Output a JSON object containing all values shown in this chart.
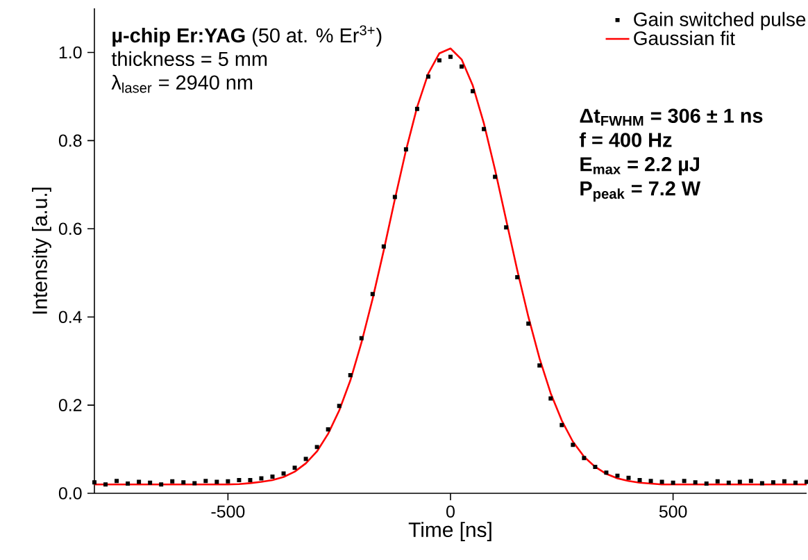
{
  "chart_data": {
    "type": "scatter",
    "xlabel": "Time [ns]",
    "ylabel": "Intensity [a.u.]",
    "xlim": [
      -800,
      800
    ],
    "ylim": [
      0,
      1.1
    ],
    "xticks": [
      -500,
      0,
      500
    ],
    "yticks": [
      {
        "value": 0,
        "label": "0.0"
      },
      {
        "value": 0.2,
        "label": "0.2"
      },
      {
        "value": 0.4,
        "label": "0.4"
      },
      {
        "value": 0.6,
        "label": "0.6"
      },
      {
        "value": 0.8,
        "label": "0.8"
      },
      {
        "value": 1.0,
        "label": "1.0"
      }
    ],
    "grid": false,
    "legend": "top right",
    "x": [
      -800,
      -775,
      -750,
      -725,
      -700,
      -675,
      -650,
      -625,
      -600,
      -575,
      -550,
      -525,
      -500,
      -475,
      -450,
      -425,
      -400,
      -375,
      -350,
      -325,
      -300,
      -275,
      -250,
      -225,
      -200,
      -175,
      -150,
      -125,
      -100,
      -75,
      -50,
      -25,
      0,
      25,
      50,
      75,
      100,
      125,
      150,
      175,
      200,
      225,
      250,
      275,
      300,
      325,
      350,
      375,
      400,
      425,
      450,
      475,
      500,
      525,
      550,
      575,
      600,
      625,
      650,
      675,
      700,
      725,
      750,
      775,
      800
    ],
    "series": [
      {
        "name": "Gain switched pulse",
        "marker": "square",
        "color": "#000000",
        "values": [
          0.025,
          0.02,
          0.028,
          0.022,
          0.026,
          0.024,
          0.02,
          0.027,
          0.025,
          0.023,
          0.028,
          0.026,
          0.027,
          0.03,
          0.03,
          0.034,
          0.038,
          0.045,
          0.058,
          0.078,
          0.105,
          0.145,
          0.198,
          0.268,
          0.352,
          0.452,
          0.56,
          0.672,
          0.78,
          0.872,
          0.945,
          0.982,
          0.99,
          0.968,
          0.912,
          0.826,
          0.718,
          0.603,
          0.49,
          0.385,
          0.29,
          0.215,
          0.155,
          0.11,
          0.08,
          0.06,
          0.047,
          0.04,
          0.035,
          0.03,
          0.028,
          0.026,
          0.024,
          0.028,
          0.025,
          0.022,
          0.027,
          0.024,
          0.026,
          0.028,
          0.023,
          0.025,
          0.027,
          0.024,
          0.026
        ]
      },
      {
        "name": "Gaussian fit",
        "type": "line",
        "marker": "none",
        "color": "#ff0000",
        "values": [
          0.02,
          0.02,
          0.02,
          0.02,
          0.02,
          0.02,
          0.02,
          0.02,
          0.02,
          0.02,
          0.02,
          0.02,
          0.02,
          0.021,
          0.023,
          0.026,
          0.03,
          0.037,
          0.049,
          0.068,
          0.095,
          0.135,
          0.188,
          0.256,
          0.342,
          0.441,
          0.551,
          0.667,
          0.778,
          0.876,
          0.952,
          0.998,
          1.009,
          0.984,
          0.925,
          0.839,
          0.734,
          0.62,
          0.506,
          0.4,
          0.306,
          0.227,
          0.165,
          0.117,
          0.083,
          0.06,
          0.044,
          0.034,
          0.028,
          0.024,
          0.022,
          0.02,
          0.02,
          0.02,
          0.02,
          0.02,
          0.02,
          0.02,
          0.02,
          0.02,
          0.02,
          0.02,
          0.02,
          0.02,
          0.02
        ]
      }
    ],
    "annotations": [
      "**µ-chip Er:YAG** (50 at. % Er$^{3+}$)",
      "thickness = 5 mm",
      "λ$_{laser}$ = 2940 nm",
      "Δt$_{FWHM}$ = 306 ± 1 ns",
      "f = 400 Hz",
      "E$_{max}$ = 2.2 µJ",
      "P$_{peak}$ = 7.2 W"
    ]
  }
}
